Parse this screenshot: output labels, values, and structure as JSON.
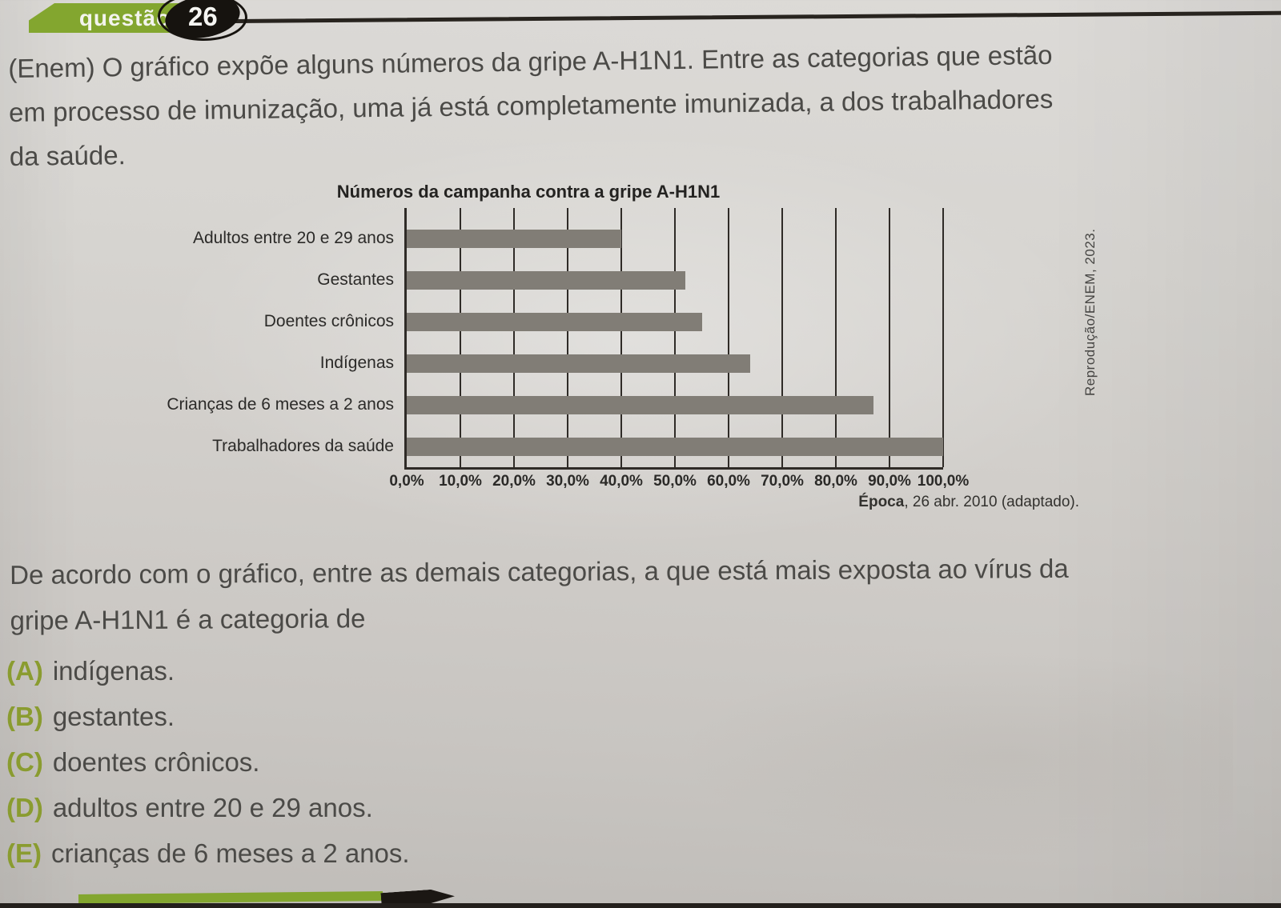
{
  "badge": {
    "label": "questão",
    "number": "26"
  },
  "question": {
    "intro_lines": [
      "(Enem) O gráfico expõe alguns números da gripe A-H1N1. Entre as categorias que estão",
      "em processo de imunização, uma já está completamente imunizada, a dos trabalhadores",
      "da saúde."
    ],
    "prompt_lines": [
      "De acordo com o gráfico, entre as demais categorias, a que está mais exposta ao vírus da",
      "gripe A-H1N1 é a categoria de"
    ],
    "options": [
      {
        "letter": "(A)",
        "text": "indígenas."
      },
      {
        "letter": "(B)",
        "text": "gestantes."
      },
      {
        "letter": "(C)",
        "text": "doentes crônicos."
      },
      {
        "letter": "(D)",
        "text": "adultos entre 20 e 29 anos."
      },
      {
        "letter": "(E)",
        "text": "crianças de 6 meses a 2 anos."
      }
    ]
  },
  "chart_data": {
    "type": "bar",
    "orientation": "horizontal",
    "title": "Números da campanha contra a gripe A-H1N1",
    "categories": [
      "Adultos entre 20 e 29 anos",
      "Gestantes",
      "Doentes crônicos",
      "Indígenas",
      "Crianças de 6 meses a 2 anos",
      "Trabalhadores da saúde"
    ],
    "values": [
      40,
      52,
      55,
      64,
      87,
      100
    ],
    "unit": "%",
    "xlim": [
      0,
      100
    ],
    "x_ticks": [
      0,
      10,
      20,
      30,
      40,
      50,
      60,
      70,
      80,
      90,
      100
    ],
    "x_tick_labels": [
      "0,0%",
      "10,0%",
      "20,0%",
      "30,0%",
      "40,0%",
      "50,0%",
      "60,0%",
      "70,0%",
      "80,0%",
      "90,0%",
      "100,0%"
    ],
    "grid": "vertical-full-height",
    "legend": "none",
    "source": {
      "bold": "Época",
      "rest": ", 26 abr. 2010 (adaptado)."
    },
    "credit": "Reprodução/ENEM, 2023."
  },
  "colors": {
    "badge_green": "#83a62f",
    "badge_dark": "#16130f",
    "option_letter_green": "#8a9c30",
    "bar_gray": "#817d76",
    "grid_dark": "#2f2b27"
  }
}
